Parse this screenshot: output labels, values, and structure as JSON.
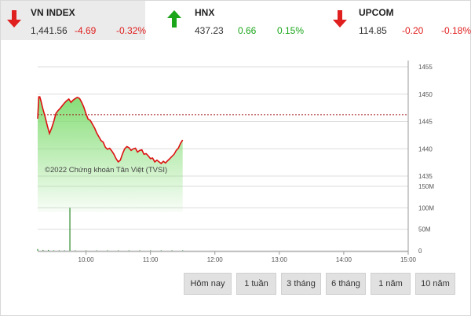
{
  "indices": [
    {
      "name": "VN INDEX",
      "value": "1,441.56",
      "change": "-4.69",
      "percent": "-0.32%",
      "direction": "down",
      "color": "#e01f1f"
    },
    {
      "name": "HNX",
      "value": "437.23",
      "change": "0.66",
      "percent": "0.15%",
      "direction": "up",
      "color": "#1aa51a"
    },
    {
      "name": "UPCOM",
      "value": "114.85",
      "change": "-0.20",
      "percent": "-0.18%",
      "direction": "down",
      "color": "#e01f1f"
    }
  ],
  "copyright": "©2022 Chứng khoán Tân Việt (TVSI)",
  "tabs": [
    "Hôm nay",
    "1 tuần",
    "3 tháng",
    "6 tháng",
    "1 năm",
    "10 năm"
  ],
  "chart_data": {
    "type": "line",
    "reference_level": 1446.25,
    "price": {
      "ylim": [
        1435,
        1455
      ],
      "yticks": [
        "1455",
        "1450",
        "1445",
        "1440",
        "1435"
      ],
      "series": [
        {
          "line_color": "#dd1111",
          "x": [
            "09:15",
            "09:16",
            "09:17",
            "09:18",
            "09:20",
            "09:22",
            "09:24",
            "09:26",
            "09:28",
            "09:30",
            "09:32",
            "09:34",
            "09:36",
            "09:38",
            "09:40",
            "09:42",
            "09:44",
            "09:46",
            "09:48",
            "09:50",
            "09:52",
            "09:54",
            "09:56",
            "09:58",
            "10:00",
            "10:02",
            "10:04",
            "10:06",
            "10:08",
            "10:10",
            "10:12",
            "10:14",
            "10:16",
            "10:18",
            "10:20",
            "10:22",
            "10:24",
            "10:26",
            "10:28",
            "10:30",
            "10:32",
            "10:34",
            "10:36",
            "10:38",
            "10:40",
            "10:42",
            "10:44",
            "10:46",
            "10:48",
            "10:50",
            "10:52",
            "10:54",
            "10:56",
            "10:58",
            "11:00",
            "11:02",
            "11:04",
            "11:06",
            "11:08",
            "11:10",
            "11:12",
            "11:14",
            "11:16",
            "11:18",
            "11:20",
            "11:22",
            "11:24",
            "11:26",
            "11:28",
            "11:30"
          ],
          "y": [
            1445.5,
            1449.5,
            1449.5,
            1448.8,
            1447.2,
            1445.8,
            1444.2,
            1442.8,
            1443.8,
            1445.0,
            1446.5,
            1447.0,
            1447.4,
            1447.9,
            1448.4,
            1448.8,
            1449.1,
            1448.5,
            1448.9,
            1449.2,
            1449.4,
            1449.2,
            1448.5,
            1447.6,
            1446.4,
            1445.4,
            1445.2,
            1444.5,
            1443.8,
            1442.9,
            1442.2,
            1441.5,
            1441.2,
            1440.3,
            1439.9,
            1440.1,
            1439.6,
            1439.0,
            1438.2,
            1437.6,
            1437.9,
            1439.1,
            1440.0,
            1440.4,
            1440.2,
            1439.7,
            1440.0,
            1440.1,
            1439.4,
            1439.7,
            1439.8,
            1439.0,
            1439.1,
            1438.7,
            1438.2,
            1438.3,
            1437.6,
            1437.9,
            1437.6,
            1437.3,
            1437.7,
            1437.4,
            1437.8,
            1438.2,
            1438.6,
            1439.0,
            1439.7,
            1440.1,
            1441.0,
            1441.6
          ]
        }
      ]
    },
    "volume": {
      "ylim": [
        0,
        150
      ],
      "yticks": [
        "150M",
        "100M",
        "50M",
        "0"
      ],
      "bar_color": "#2e8b2e",
      "bars": [
        {
          "x": "09:15",
          "value": 4
        },
        {
          "x": "09:20",
          "value": 2
        },
        {
          "x": "09:25",
          "value": 2
        },
        {
          "x": "09:30",
          "value": 1
        },
        {
          "x": "09:35",
          "value": 1
        },
        {
          "x": "09:40",
          "value": 1
        },
        {
          "x": "09:45",
          "value": 100
        },
        {
          "x": "09:50",
          "value": 1
        },
        {
          "x": "10:00",
          "value": 1
        },
        {
          "x": "10:10",
          "value": 1
        },
        {
          "x": "10:20",
          "value": 1
        },
        {
          "x": "10:30",
          "value": 1
        },
        {
          "x": "10:40",
          "value": 1
        },
        {
          "x": "10:50",
          "value": 1
        },
        {
          "x": "11:00",
          "value": 1
        },
        {
          "x": "11:10",
          "value": 1
        },
        {
          "x": "11:20",
          "value": 1
        },
        {
          "x": "11:30",
          "value": 1
        }
      ]
    },
    "xticks": [
      "10:00",
      "11:00",
      "12:00",
      "13:00",
      "14:00",
      "15:00"
    ],
    "xrange": [
      "09:15",
      "15:00"
    ]
  }
}
